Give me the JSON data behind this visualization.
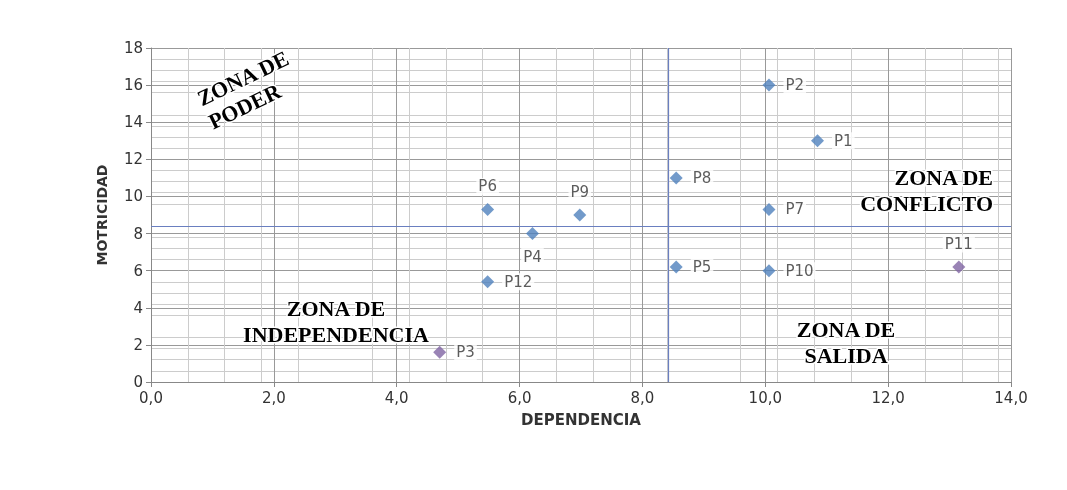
{
  "chart_data": {
    "type": "scatter",
    "xlabel": "DEPENDENCIA",
    "ylabel": "MOTRICIDAD",
    "x": [
      10.85,
      10.06,
      4.7,
      6.21,
      8.55,
      5.48,
      10.06,
      8.55,
      6.98,
      10.06,
      13.15,
      5.48
    ],
    "values": [
      13.0,
      16.0,
      1.6,
      8.0,
      6.2,
      9.3,
      9.3,
      11.0,
      9.0,
      6.0,
      6.2,
      5.4
    ],
    "value_labels": [
      "P1",
      "P2",
      "P3",
      "P4",
      "P5",
      "P6",
      "P7",
      "P8",
      "P9",
      "P10",
      "P11",
      "P12"
    ],
    "colors": [
      "#4f81bd",
      "#4f81bd",
      "#8064a2",
      "#4f81bd",
      "#4f81bd",
      "#4f81bd",
      "#4f81bd",
      "#4f81bd",
      "#4f81bd",
      "#4f81bd",
      "#8064a2",
      "#4f81bd"
    ],
    "marker": "diamond",
    "xlim": [
      0,
      14
    ],
    "ylim": [
      0,
      18
    ],
    "xticks": [
      {
        "value": 0,
        "label": "0,0"
      },
      {
        "value": 2,
        "label": "2,0"
      },
      {
        "value": 4,
        "label": "4,0"
      },
      {
        "value": 6,
        "label": "6,0"
      },
      {
        "value": 8,
        "label": "8,0"
      },
      {
        "value": 10,
        "label": "10,0"
      },
      {
        "value": 12,
        "label": "12,0"
      },
      {
        "value": 14,
        "label": "14,0"
      }
    ],
    "yticks": [
      0,
      2,
      4,
      6,
      8,
      10,
      12,
      14,
      16,
      18
    ],
    "grid": true,
    "ref_lines": [
      {
        "axis": "x",
        "value": 8.42,
        "color": "#6a7fc0"
      },
      {
        "axis": "y",
        "value": 8.38,
        "color": "#6a7fc0"
      }
    ],
    "annotations": [
      "ZONA DE\nPODER",
      "ZONA DE\nCONFLICTO",
      "ZONA DE\nINDEPENDENCIA",
      "ZONA DE\nSALIDA"
    ]
  }
}
